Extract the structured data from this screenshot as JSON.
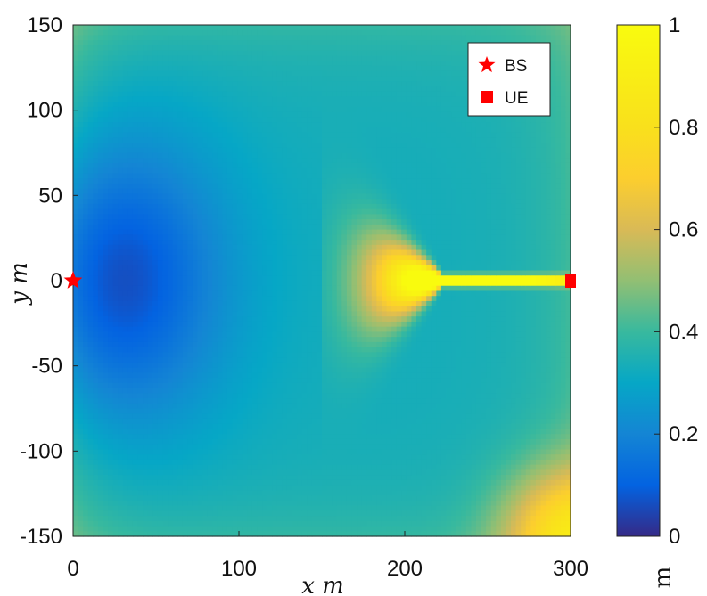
{
  "chart_data": {
    "type": "heatmap",
    "title": "",
    "xlabel": "x m",
    "ylabel": "y m",
    "xlim": [
      0,
      300
    ],
    "ylim": [
      -150,
      150
    ],
    "x_ticks": [
      "0",
      "100",
      "200",
      "300"
    ],
    "y_ticks": [
      "150",
      "100",
      "50",
      "0",
      "-50",
      "-100",
      "-150"
    ],
    "colorbar": {
      "label": "m",
      "range": [
        0,
        1
      ],
      "ticks": [
        "1",
        "0.8",
        "0.6",
        "0.4",
        "0.2",
        "0"
      ],
      "colormap": "parula"
    },
    "markers": [
      {
        "name": "BS",
        "shape": "star",
        "color": "#ff0000",
        "x": 0,
        "y": 0
      },
      {
        "name": "UE",
        "shape": "square",
        "color": "#ff0000",
        "x": 300,
        "y": 0
      }
    ],
    "field": {
      "background_level": 0.33,
      "low_region": {
        "center_x": 25,
        "center_y": 0,
        "min_value": 0.04
      },
      "high_region": {
        "center_x": 230,
        "center_y": 0,
        "max_value": 1.0,
        "points_toward": "UE"
      },
      "corner_value_bottom_right": 0.75
    },
    "legend": {
      "position": "top-right",
      "entries": [
        "BS",
        "UE"
      ]
    },
    "grid": false
  }
}
